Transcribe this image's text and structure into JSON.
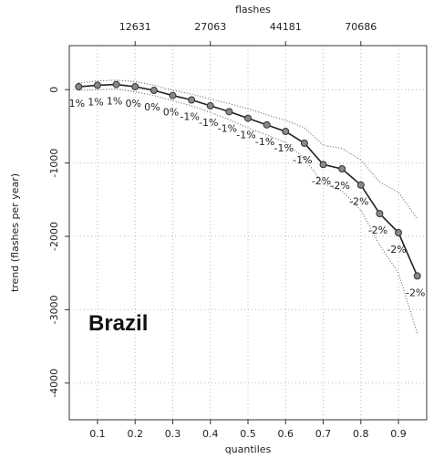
{
  "chart_data": {
    "type": "line",
    "panel_label": "Brazil",
    "xlabel": "quantiles",
    "ylabel": "trend (flashes per year)",
    "top_axis_label": "flashes",
    "xlim": [
      0.025,
      0.975
    ],
    "ylim": [
      -4500,
      600
    ],
    "x_ticks": [
      "0.1",
      "0.2",
      "0.3",
      "0.4",
      "0.5",
      "0.6",
      "0.7",
      "0.8",
      "0.9"
    ],
    "y_ticks": [
      "0",
      "-1000",
      "-2000",
      "-3000",
      "-4000"
    ],
    "top_ticks": [
      {
        "x": 0.2,
        "label": "12631"
      },
      {
        "x": 0.4,
        "label": "27063"
      },
      {
        "x": 0.6,
        "label": "44181"
      },
      {
        "x": 0.8,
        "label": "70686"
      }
    ],
    "grid": true,
    "series": [
      {
        "x": [
          0.05,
          0.1,
          0.15,
          0.2,
          0.25,
          0.3,
          0.35,
          0.4,
          0.45,
          0.5,
          0.55,
          0.6,
          0.65,
          0.7,
          0.75,
          0.8,
          0.85,
          0.9,
          0.95
        ],
        "y": [
          40,
          60,
          70,
          40,
          -10,
          -80,
          -140,
          -220,
          -300,
          -390,
          -480,
          -570,
          -730,
          -1020,
          -1080,
          -1300,
          -1690,
          -1950,
          -2540
        ],
        "pct_labels": [
          "1%",
          "1%",
          "1%",
          "0%",
          "0%",
          "0%",
          "-1%",
          "-1%",
          "-1%",
          "-1%",
          "-1%",
          "-1%",
          "-1%",
          "-2%",
          "-2%",
          "-2%",
          "-2%",
          "-2%",
          "-2%"
        ]
      }
    ],
    "ci_upper": [
      90,
      120,
      130,
      110,
      60,
      -10,
      -60,
      -130,
      -190,
      -260,
      -340,
      -420,
      -520,
      -760,
      -800,
      -960,
      -1260,
      -1400,
      -1760
    ],
    "ci_lower": [
      -10,
      0,
      10,
      -30,
      -80,
      -150,
      -220,
      -310,
      -410,
      -520,
      -620,
      -720,
      -940,
      -1280,
      -1380,
      -1640,
      -2120,
      -2500,
      -3320
    ]
  }
}
